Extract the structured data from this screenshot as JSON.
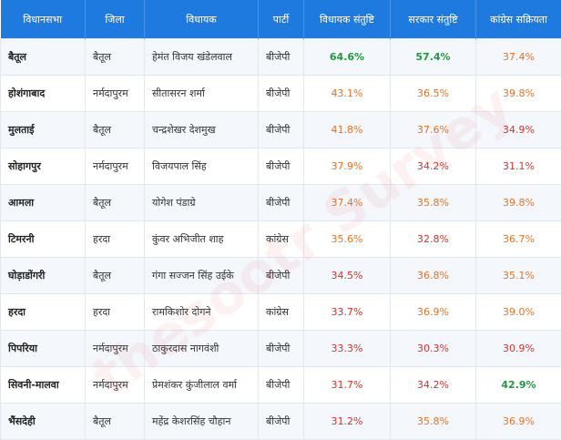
{
  "table": {
    "header": [
      "विधानसभा",
      "जिला",
      "विधायक",
      "पार्टी",
      "विधायक संतुष्टि",
      "सरकार संतुष्टि",
      "कांग्रेस सक्रियता"
    ],
    "rows": [
      [
        "बैतूल",
        "बैतूल",
        "हेमंत विजय खंडेलवाल",
        "बीजेपी",
        "64.6%",
        "57.4%",
        "37.4%"
      ],
      [
        "होशंगाबाद",
        "नर्मदापुरम",
        "सीतासरन शर्मा",
        "बीजेपी",
        "43.1%",
        "36.5%",
        "39.8%"
      ],
      [
        "मुलताई",
        "बैतूल",
        "चन्द्रशेखर देशमुख",
        "बीजेपी",
        "41.8%",
        "37.6%",
        "34.9%"
      ],
      [
        "सोहागपुर",
        "नर्मदापुरम",
        "विजयपाल सिंह",
        "बीजेपी",
        "37.9%",
        "34.2%",
        "31.1%"
      ],
      [
        "आमला",
        "बैतूल",
        "योगेश पंडाग्रे",
        "बीजेपी",
        "37.4%",
        "35.8%",
        "39.8%"
      ],
      [
        "टिमरनी",
        "हरदा",
        "कुंवर अभिजीत शाह",
        "कांग्रेस",
        "35.6%",
        "32.8%",
        "36.7%"
      ],
      [
        "घोड़ाडोंगरी",
        "बैतूल",
        "गंगा सज्जन सिंह उईके",
        "बीजेपी",
        "34.5%",
        "36.8%",
        "35.1%"
      ],
      [
        "हरदा",
        "हरदा",
        "रामकिशोर दोगने",
        "कांग्रेस",
        "33.7%",
        "36.9%",
        "39.0%"
      ],
      [
        "पिपरिया",
        "नर्मदापुरम",
        "ठाकुरदास नागवंशी",
        "बीजेपी",
        "33.3%",
        "30.3%",
        "30.9%"
      ],
      [
        "सिवनी-मालवा",
        "नर्मदापुरम",
        "प्रेमशंकर कुंजीलाल वर्मा",
        "बीजेपी",
        "31.7%",
        "34.2%",
        "42.9%"
      ],
      [
        "भैंसदेही",
        "बैतूल",
        "महेंद्र केशरसिंह चौहान",
        "बीजेपी",
        "31.2%",
        "35.8%",
        "36.9%"
      ]
    ],
    "cell_colors": [
      [
        "green",
        "green",
        "orange"
      ],
      [
        "orange",
        "orange",
        "orange"
      ],
      [
        "orange",
        "orange",
        "red"
      ],
      [
        "orange",
        "red",
        "red"
      ],
      [
        "orange",
        "orange",
        "orange"
      ],
      [
        "orange",
        "red",
        "orange"
      ],
      [
        "red",
        "orange",
        "orange"
      ],
      [
        "red",
        "orange",
        "orange"
      ],
      [
        "red",
        "red",
        "red"
      ],
      [
        "red",
        "red",
        "green"
      ],
      [
        "red",
        "orange",
        "orange"
      ]
    ]
  },
  "watermark": "thesootr Survey"
}
